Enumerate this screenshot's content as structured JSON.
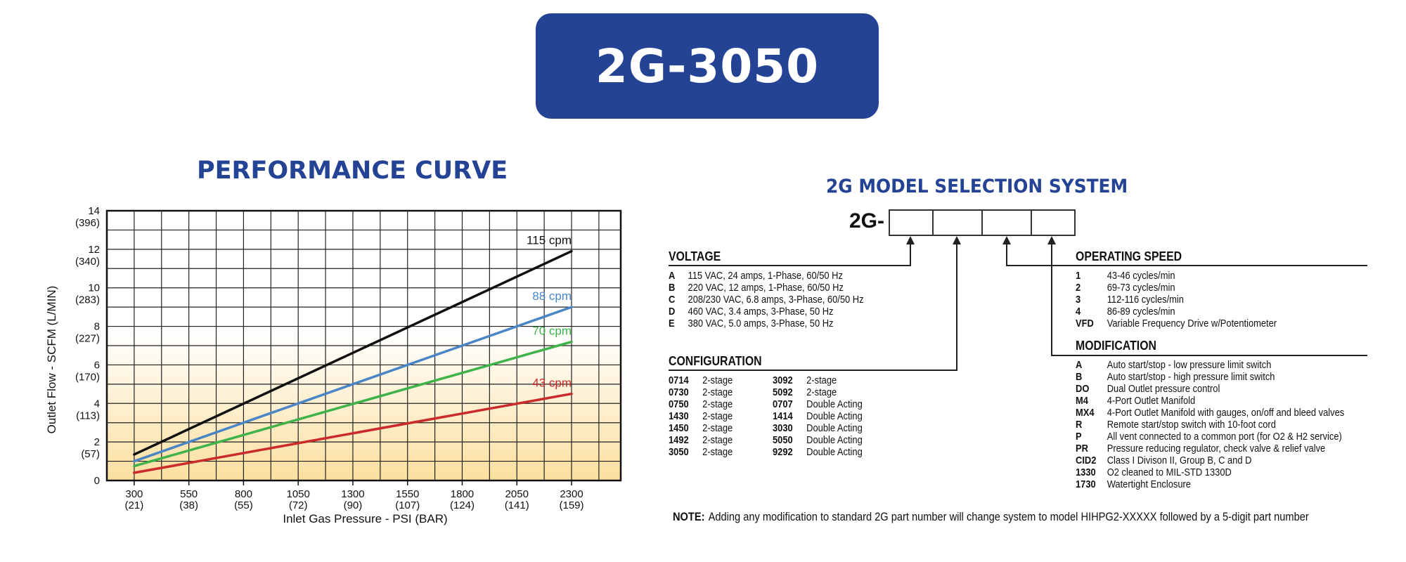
{
  "header": {
    "model": "2G-3050"
  },
  "performance": {
    "title": "PERFORMANCE CURVE"
  },
  "chart_data": {
    "type": "line",
    "xlabel": "Inlet Gas Pressure - PSI (BAR)",
    "ylabel": "Outlet Flow - SCFM (L/MIN)",
    "x_ticks": [
      {
        "value": 300,
        "label": "300",
        "sub": "(21)"
      },
      {
        "value": 550,
        "label": "550",
        "sub": "(38)"
      },
      {
        "value": 800,
        "label": "800",
        "sub": "(55)"
      },
      {
        "value": 1050,
        "label": "1050",
        "sub": "(72)"
      },
      {
        "value": 1300,
        "label": "1300",
        "sub": "(90)"
      },
      {
        "value": 1550,
        "label": "1550",
        "sub": "(107)"
      },
      {
        "value": 1800,
        "label": "1800",
        "sub": "(124)"
      },
      {
        "value": 2050,
        "label": "2050",
        "sub": "(141)"
      },
      {
        "value": 2300,
        "label": "2300",
        "sub": "(159)"
      }
    ],
    "y_ticks": [
      {
        "value": 0,
        "label": "0",
        "sub": ""
      },
      {
        "value": 2,
        "label": "2",
        "sub": "(57)"
      },
      {
        "value": 4,
        "label": "4",
        "sub": "(113)"
      },
      {
        "value": 6,
        "label": "6",
        "sub": "(170)"
      },
      {
        "value": 8,
        "label": "8",
        "sub": "(227)"
      },
      {
        "value": 10,
        "label": "10",
        "sub": "(283)"
      },
      {
        "value": 12,
        "label": "12",
        "sub": "(340)"
      },
      {
        "value": 14,
        "label": "14",
        "sub": "(396)"
      }
    ],
    "xlim": [
      175,
      2525
    ],
    "ylim": [
      0,
      14
    ],
    "grid": true,
    "background_gradient": [
      "#ffffff",
      "#fbdf9f"
    ],
    "series": [
      {
        "name": "115 cpm",
        "color": "#111111",
        "points": [
          [
            300,
            1.35
          ],
          [
            2300,
            11.9
          ]
        ]
      },
      {
        "name": "88 cpm",
        "color": "#4a86c5",
        "points": [
          [
            300,
            1.0
          ],
          [
            2300,
            9.0
          ]
        ]
      },
      {
        "name": "70 cpm",
        "color": "#3fb34a",
        "points": [
          [
            300,
            0.75
          ],
          [
            2300,
            7.2
          ]
        ]
      },
      {
        "name": "43 cpm",
        "color": "#cc2a2a",
        "points": [
          [
            300,
            0.4
          ],
          [
            2300,
            4.5
          ]
        ]
      }
    ]
  },
  "model_selection": {
    "title": "2G MODEL SELECTION SYSTEM",
    "prefix": "2G-",
    "voltage": {
      "heading": "VOLTAGE",
      "options": [
        {
          "code": "A",
          "desc": "115 VAC, 24 amps, 1-Phase, 60/50 Hz"
        },
        {
          "code": "B",
          "desc": "220 VAC,  12 amps, 1-Phase, 60/50 Hz"
        },
        {
          "code": "C",
          "desc": "208/230 VAC,  6.8 amps, 3-Phase, 60/50 Hz"
        },
        {
          "code": "D",
          "desc": "460 VAC,  3.4 amps, 3-Phase, 50 Hz"
        },
        {
          "code": "E",
          "desc": "380 VAC, 5.0 amps, 3-Phase, 50 Hz"
        }
      ]
    },
    "configuration": {
      "heading": "CONFIGURATION",
      "left": [
        {
          "code": "0714",
          "desc": "2-stage"
        },
        {
          "code": "0730",
          "desc": "2-stage"
        },
        {
          "code": "0750",
          "desc": "2-stage"
        },
        {
          "code": "1430",
          "desc": "2-stage"
        },
        {
          "code": "1450",
          "desc": "2-stage"
        },
        {
          "code": "1492",
          "desc": "2-stage"
        },
        {
          "code": "3050",
          "desc": "2-stage"
        }
      ],
      "right": [
        {
          "code": "3092",
          "desc": "2-stage"
        },
        {
          "code": "5092",
          "desc": "2-stage"
        },
        {
          "code": "0707",
          "desc": "Double Acting"
        },
        {
          "code": "1414",
          "desc": "Double Acting"
        },
        {
          "code": "3030",
          "desc": "Double Acting"
        },
        {
          "code": "5050",
          "desc": "Double Acting"
        },
        {
          "code": "9292",
          "desc": "Double Acting"
        }
      ]
    },
    "operating_speed": {
      "heading": "OPERATING SPEED",
      "options": [
        {
          "code": "1",
          "desc": "43-46 cycles/min"
        },
        {
          "code": "2",
          "desc": "69-73 cycles/min"
        },
        {
          "code": "3",
          "desc": "112-116 cycles/min"
        },
        {
          "code": "4",
          "desc": "86-89 cycles/min"
        },
        {
          "code": "VFD",
          "desc": "Variable Frequency Drive w/Potentiometer"
        }
      ]
    },
    "modification": {
      "heading": "MODIFICATION",
      "options": [
        {
          "code": "A",
          "desc": "Auto start/stop - low pressure limit switch"
        },
        {
          "code": "B",
          "desc": "Auto start/stop - high pressure limit switch"
        },
        {
          "code": "DO",
          "desc": "Dual Outlet pressure control"
        },
        {
          "code": "M4",
          "desc": "4-Port Outlet Manifold"
        },
        {
          "code": "MX4",
          "desc": "4-Port Outlet Manifold with gauges, on/off and bleed valves"
        },
        {
          "code": "R",
          "desc": "Remote start/stop switch with 10-foot cord"
        },
        {
          "code": "P",
          "desc": "All vent connected to a common port (for O2 & H2 service)"
        },
        {
          "code": "PR",
          "desc": "Pressure reducing regulator, check valve & relief valve"
        },
        {
          "code": "CID2",
          "desc": "Class I Divison II, Group B, C and D"
        },
        {
          "code": "1330",
          "desc": "O2 cleaned to MIL-STD 1330D"
        },
        {
          "code": "1730",
          "desc": "Watertight Enclosure"
        }
      ]
    },
    "note": {
      "label": "NOTE:",
      "text": "Adding any modification to standard 2G part number will change system to model HIHPG2-XXXXX followed by a 5-digit part number"
    }
  }
}
